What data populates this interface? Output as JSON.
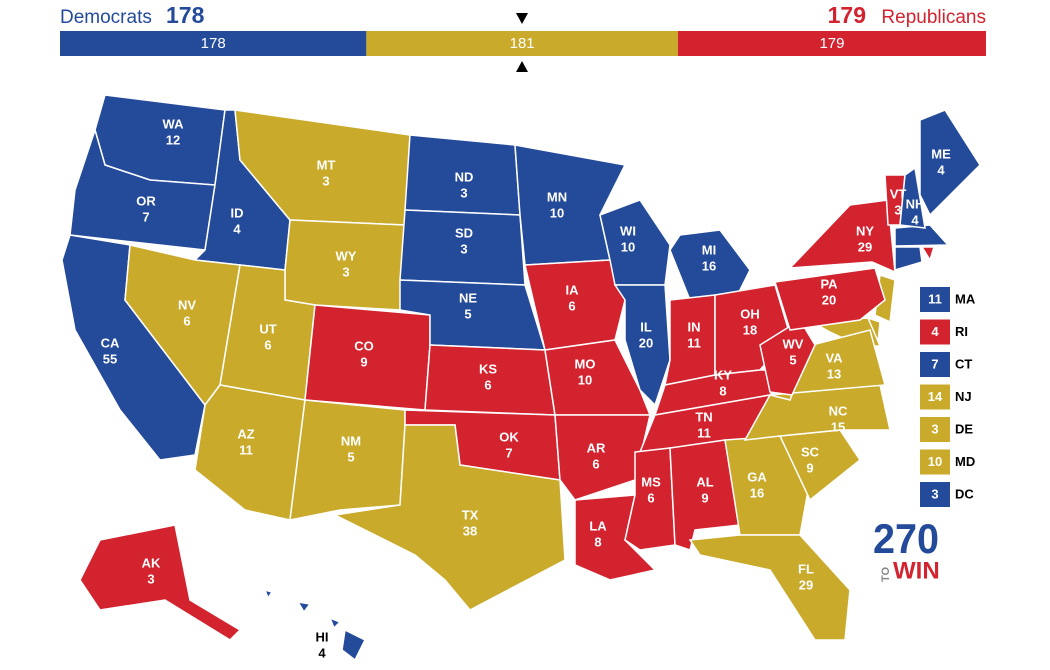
{
  "header": {
    "dem_label": "Democrats",
    "dem_total": 178,
    "rep_total": 179,
    "rep_label": "Republicans"
  },
  "colors": {
    "dem": "#244a9a",
    "tossup": "#c9aa2a",
    "rep": "#d2232f"
  },
  "bar": [
    {
      "party": "dem",
      "value": 178
    },
    {
      "party": "tossup",
      "value": 181
    },
    {
      "party": "rep",
      "value": 179
    }
  ],
  "states": [
    {
      "abbr": "WA",
      "votes": 12,
      "party": "dem"
    },
    {
      "abbr": "OR",
      "votes": 7,
      "party": "dem"
    },
    {
      "abbr": "CA",
      "votes": 55,
      "party": "dem"
    },
    {
      "abbr": "ID",
      "votes": 4,
      "party": "dem"
    },
    {
      "abbr": "NV",
      "votes": 6,
      "party": "tossup"
    },
    {
      "abbr": "MT",
      "votes": 3,
      "party": "tossup"
    },
    {
      "abbr": "WY",
      "votes": 3,
      "party": "tossup"
    },
    {
      "abbr": "UT",
      "votes": 6,
      "party": "tossup"
    },
    {
      "abbr": "AZ",
      "votes": 11,
      "party": "tossup"
    },
    {
      "abbr": "CO",
      "votes": 9,
      "party": "rep"
    },
    {
      "abbr": "NM",
      "votes": 5,
      "party": "tossup"
    },
    {
      "abbr": "ND",
      "votes": 3,
      "party": "dem"
    },
    {
      "abbr": "SD",
      "votes": 3,
      "party": "dem"
    },
    {
      "abbr": "NE",
      "votes": 5,
      "party": "dem"
    },
    {
      "abbr": "KS",
      "votes": 6,
      "party": "rep"
    },
    {
      "abbr": "OK",
      "votes": 7,
      "party": "rep"
    },
    {
      "abbr": "TX",
      "votes": 38,
      "party": "tossup"
    },
    {
      "abbr": "MN",
      "votes": 10,
      "party": "dem"
    },
    {
      "abbr": "IA",
      "votes": 6,
      "party": "rep"
    },
    {
      "abbr": "MO",
      "votes": 10,
      "party": "rep"
    },
    {
      "abbr": "AR",
      "votes": 6,
      "party": "rep"
    },
    {
      "abbr": "LA",
      "votes": 8,
      "party": "rep"
    },
    {
      "abbr": "WI",
      "votes": 10,
      "party": "dem"
    },
    {
      "abbr": "IL",
      "votes": 20,
      "party": "dem"
    },
    {
      "abbr": "MI",
      "votes": 16,
      "party": "dem"
    },
    {
      "abbr": "IN",
      "votes": 11,
      "party": "rep"
    },
    {
      "abbr": "OH",
      "votes": 18,
      "party": "rep"
    },
    {
      "abbr": "KY",
      "votes": 8,
      "party": "rep"
    },
    {
      "abbr": "TN",
      "votes": 11,
      "party": "rep"
    },
    {
      "abbr": "MS",
      "votes": 6,
      "party": "rep"
    },
    {
      "abbr": "AL",
      "votes": 9,
      "party": "rep"
    },
    {
      "abbr": "GA",
      "votes": 16,
      "party": "tossup"
    },
    {
      "abbr": "FL",
      "votes": 29,
      "party": "tossup"
    },
    {
      "abbr": "SC",
      "votes": 9,
      "party": "tossup"
    },
    {
      "abbr": "NC",
      "votes": 15,
      "party": "tossup"
    },
    {
      "abbr": "VA",
      "votes": 13,
      "party": "tossup"
    },
    {
      "abbr": "WV",
      "votes": 5,
      "party": "rep"
    },
    {
      "abbr": "PA",
      "votes": 20,
      "party": "rep"
    },
    {
      "abbr": "NY",
      "votes": 29,
      "party": "rep"
    },
    {
      "abbr": "VT",
      "votes": 3,
      "party": "rep"
    },
    {
      "abbr": "NH",
      "votes": 4,
      "party": "dem"
    },
    {
      "abbr": "ME",
      "votes": 4,
      "party": "dem"
    },
    {
      "abbr": "AK",
      "votes": 3,
      "party": "rep"
    },
    {
      "abbr": "HI",
      "votes": 4,
      "party": "dem"
    }
  ],
  "small_states": [
    {
      "abbr": "MA",
      "votes": 11,
      "party": "dem"
    },
    {
      "abbr": "RI",
      "votes": 4,
      "party": "rep"
    },
    {
      "abbr": "CT",
      "votes": 7,
      "party": "dem"
    },
    {
      "abbr": "NJ",
      "votes": 14,
      "party": "tossup"
    },
    {
      "abbr": "DE",
      "votes": 3,
      "party": "tossup"
    },
    {
      "abbr": "MD",
      "votes": 10,
      "party": "tossup"
    },
    {
      "abbr": "DC",
      "votes": 3,
      "party": "dem"
    }
  ],
  "logo": {
    "number": "270",
    "to": "TO",
    "win": "WIN"
  }
}
